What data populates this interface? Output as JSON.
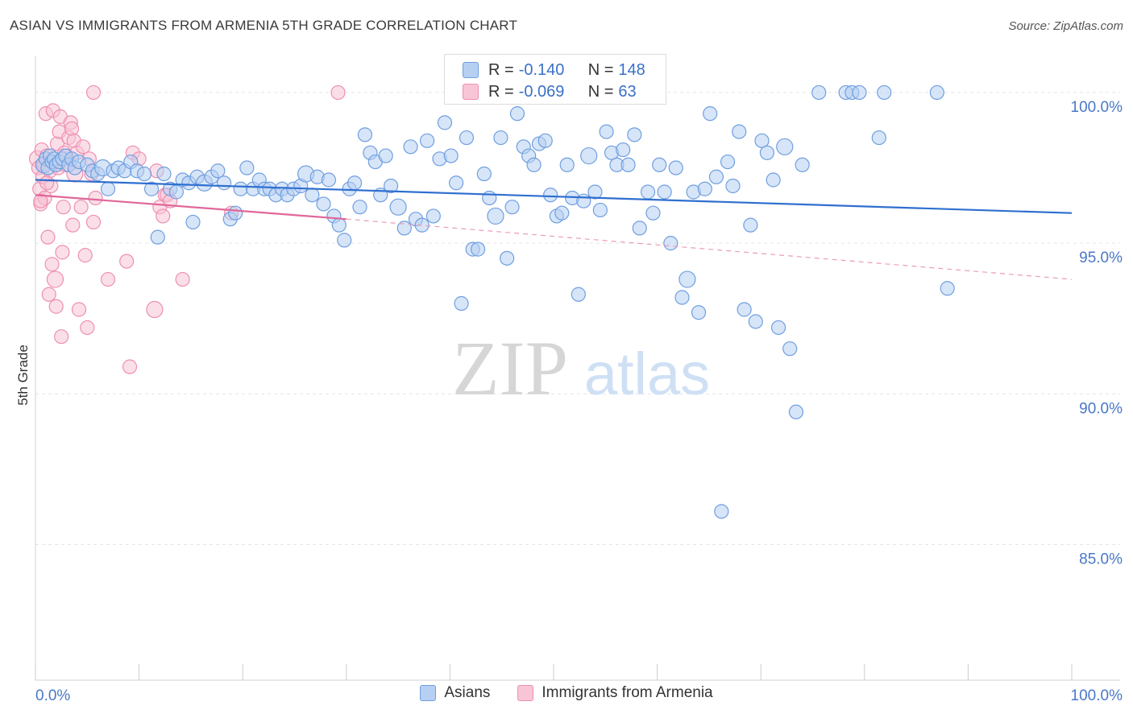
{
  "title": "ASIAN VS IMMIGRANTS FROM ARMENIA 5TH GRADE CORRELATION CHART",
  "source": "Source: ZipAtlas.com",
  "watermark": {
    "zip": "ZIP",
    "atlas": "atlas"
  },
  "stats": [
    {
      "r_label": "R =",
      "r": "-0.140",
      "n_label": "N =",
      "n": "148",
      "color": "#6f9fe0",
      "fill": "#b7cff2"
    },
    {
      "r_label": "R =",
      "r": "-0.069",
      "n_label": "N =",
      "n": "63",
      "color": "#ee8fb0",
      "fill": "#f8c5d6"
    }
  ],
  "chart_data": {
    "type": "scatter",
    "title": "ASIAN VS IMMIGRANTS FROM ARMENIA 5TH GRADE CORRELATION CHART",
    "xlabel": "",
    "ylabel": "5th Grade",
    "xlim": [
      0,
      100
    ],
    "ylim": [
      80.5,
      101.2
    ],
    "x_tick_labels": [
      {
        "value": 0,
        "label": "0.0%"
      },
      {
        "value": 100,
        "label": "100.0%"
      }
    ],
    "y_tick_labels": [
      {
        "value": 100,
        "label": "100.0%"
      },
      {
        "value": 95,
        "label": "95.0%"
      },
      {
        "value": 90,
        "label": "90.0%"
      },
      {
        "value": 85,
        "label": "85.0%"
      }
    ],
    "grid": true,
    "legend_position": "bottom",
    "series": [
      {
        "name": "Asians",
        "color": "#6f9fe0",
        "fill": "#b7cff2",
        "trend": {
          "x0": 0,
          "y0": 97.1,
          "x1": 100,
          "y1": 96.0
        },
        "points": [
          [
            0.8,
            97.6
          ],
          [
            1.0,
            97.8
          ],
          [
            1.2,
            97.5
          ],
          [
            1.4,
            97.9
          ],
          [
            1.6,
            97.7
          ],
          [
            1.8,
            97.8
          ],
          [
            2.0,
            97.6
          ],
          [
            2.3,
            97.7
          ],
          [
            2.6,
            97.8
          ],
          [
            2.9,
            97.9
          ],
          [
            3.2,
            97.6
          ],
          [
            3.5,
            97.8
          ],
          [
            3.8,
            97.5
          ],
          [
            4.2,
            97.7
          ],
          [
            5.0,
            97.6
          ],
          [
            5.5,
            97.4
          ],
          [
            6.0,
            97.3
          ],
          [
            6.5,
            97.5
          ],
          [
            7.0,
            96.8
          ],
          [
            7.5,
            97.4
          ],
          [
            8.0,
            97.5
          ],
          [
            8.6,
            97.4
          ],
          [
            9.2,
            97.7
          ],
          [
            9.8,
            97.4
          ],
          [
            10.5,
            97.3
          ],
          [
            11.2,
            96.8
          ],
          [
            11.8,
            95.2
          ],
          [
            12.4,
            97.3
          ],
          [
            13.0,
            96.8
          ],
          [
            13.6,
            96.7
          ],
          [
            14.2,
            97.1
          ],
          [
            14.8,
            97.0
          ],
          [
            15.2,
            95.7
          ],
          [
            15.6,
            97.2
          ],
          [
            16.3,
            97.0
          ],
          [
            17.0,
            97.2
          ],
          [
            17.6,
            97.4
          ],
          [
            18.2,
            97.0
          ],
          [
            18.8,
            95.8
          ],
          [
            19.3,
            96.0
          ],
          [
            19.8,
            96.8
          ],
          [
            20.4,
            97.5
          ],
          [
            21.0,
            96.8
          ],
          [
            21.6,
            97.1
          ],
          [
            22.1,
            96.8
          ],
          [
            22.6,
            96.8
          ],
          [
            23.2,
            96.6
          ],
          [
            23.8,
            96.8
          ],
          [
            24.3,
            96.6
          ],
          [
            24.9,
            96.8
          ],
          [
            25.6,
            96.9
          ],
          [
            26.1,
            97.3
          ],
          [
            26.7,
            96.6
          ],
          [
            27.2,
            97.2
          ],
          [
            27.8,
            96.3
          ],
          [
            28.3,
            97.1
          ],
          [
            28.8,
            95.9
          ],
          [
            29.3,
            95.6
          ],
          [
            29.8,
            95.1
          ],
          [
            30.3,
            96.8
          ],
          [
            30.8,
            97.0
          ],
          [
            31.3,
            96.2
          ],
          [
            31.8,
            98.6
          ],
          [
            32.3,
            98.0
          ],
          [
            32.8,
            97.7
          ],
          [
            33.3,
            96.6
          ],
          [
            33.8,
            97.9
          ],
          [
            34.3,
            96.9
          ],
          [
            35.0,
            96.2
          ],
          [
            35.6,
            95.5
          ],
          [
            36.2,
            98.2
          ],
          [
            36.7,
            95.8
          ],
          [
            37.3,
            95.6
          ],
          [
            37.8,
            98.4
          ],
          [
            38.4,
            95.9
          ],
          [
            39.0,
            97.8
          ],
          [
            39.5,
            99.0
          ],
          [
            40.1,
            97.9
          ],
          [
            40.6,
            97.0
          ],
          [
            41.1,
            93.0
          ],
          [
            41.6,
            98.5
          ],
          [
            42.2,
            94.8
          ],
          [
            42.7,
            94.8
          ],
          [
            43.3,
            97.3
          ],
          [
            43.8,
            96.5
          ],
          [
            44.4,
            95.9
          ],
          [
            44.9,
            98.5
          ],
          [
            45.5,
            94.5
          ],
          [
            46.0,
            96.2
          ],
          [
            46.5,
            99.3
          ],
          [
            47.1,
            98.2
          ],
          [
            47.6,
            97.9
          ],
          [
            48.1,
            97.6
          ],
          [
            48.6,
            98.3
          ],
          [
            49.2,
            98.4
          ],
          [
            49.7,
            96.6
          ],
          [
            50.3,
            95.9
          ],
          [
            50.8,
            96.0
          ],
          [
            51.3,
            97.6
          ],
          [
            51.8,
            96.5
          ],
          [
            52.4,
            93.3
          ],
          [
            52.9,
            96.4
          ],
          [
            53.4,
            97.9
          ],
          [
            54.0,
            96.7
          ],
          [
            54.5,
            96.1
          ],
          [
            55.1,
            98.7
          ],
          [
            55.6,
            98.0
          ],
          [
            56.1,
            97.6
          ],
          [
            56.7,
            98.1
          ],
          [
            57.2,
            97.6
          ],
          [
            57.8,
            98.6
          ],
          [
            58.3,
            95.5
          ],
          [
            59.1,
            96.7
          ],
          [
            59.6,
            96.0
          ],
          [
            60.2,
            97.6
          ],
          [
            60.7,
            96.7
          ],
          [
            61.3,
            95.0
          ],
          [
            61.8,
            97.5
          ],
          [
            62.4,
            93.2
          ],
          [
            62.9,
            93.8
          ],
          [
            63.5,
            96.7
          ],
          [
            64.0,
            92.7
          ],
          [
            64.6,
            96.8
          ],
          [
            65.1,
            99.3
          ],
          [
            65.7,
            97.2
          ],
          [
            66.2,
            86.1
          ],
          [
            66.8,
            97.7
          ],
          [
            67.3,
            96.9
          ],
          [
            67.9,
            98.7
          ],
          [
            68.4,
            92.8
          ],
          [
            69.0,
            95.6
          ],
          [
            69.5,
            92.4
          ],
          [
            70.1,
            98.4
          ],
          [
            70.6,
            98.0
          ],
          [
            71.2,
            97.1
          ],
          [
            71.7,
            92.2
          ],
          [
            72.3,
            98.2
          ],
          [
            72.8,
            91.5
          ],
          [
            73.4,
            89.4
          ],
          [
            74.0,
            97.6
          ],
          [
            75.6,
            100.0
          ],
          [
            78.2,
            100.0
          ],
          [
            78.8,
            100.0
          ],
          [
            79.5,
            100.0
          ],
          [
            81.4,
            98.5
          ],
          [
            81.9,
            100.0
          ],
          [
            87.0,
            100.0
          ],
          [
            88.0,
            93.5
          ]
        ]
      },
      {
        "name": "Immigrants from Armenia",
        "color": "#ee8fb0",
        "fill": "#f8c5d6",
        "trend_solid": {
          "x0": 0,
          "y0": 96.6,
          "x1": 30,
          "y1": 95.8
        },
        "trend_dashed": {
          "x0": 30,
          "y0": 95.8,
          "x1": 100,
          "y1": 93.8
        },
        "points": [
          [
            0.2,
            97.8
          ],
          [
            0.3,
            97.5
          ],
          [
            0.4,
            96.8
          ],
          [
            0.5,
            96.3
          ],
          [
            0.6,
            98.1
          ],
          [
            0.7,
            97.2
          ],
          [
            0.8,
            97.6
          ],
          [
            0.9,
            96.5
          ],
          [
            1.0,
            99.3
          ],
          [
            1.1,
            97.9
          ],
          [
            1.2,
            95.2
          ],
          [
            1.3,
            93.3
          ],
          [
            1.4,
            97.4
          ],
          [
            1.5,
            96.9
          ],
          [
            1.6,
            94.3
          ],
          [
            1.7,
            99.4
          ],
          [
            1.8,
            97.7
          ],
          [
            1.9,
            93.8
          ],
          [
            2.0,
            92.9
          ],
          [
            2.1,
            98.3
          ],
          [
            2.2,
            97.5
          ],
          [
            2.3,
            98.7
          ],
          [
            2.4,
            99.2
          ],
          [
            2.5,
            91.9
          ],
          [
            2.6,
            94.7
          ],
          [
            2.7,
            96.2
          ],
          [
            2.8,
            98.0
          ],
          [
            2.9,
            97.6
          ],
          [
            3.0,
            97.9
          ],
          [
            3.2,
            98.5
          ],
          [
            3.4,
            99.0
          ],
          [
            3.5,
            98.8
          ],
          [
            3.6,
            95.6
          ],
          [
            3.7,
            98.4
          ],
          [
            3.8,
            97.3
          ],
          [
            4.0,
            98.0
          ],
          [
            4.2,
            92.8
          ],
          [
            4.4,
            96.2
          ],
          [
            4.6,
            98.2
          ],
          [
            4.8,
            94.6
          ],
          [
            5.0,
            92.2
          ],
          [
            5.2,
            97.8
          ],
          [
            5.4,
            97.3
          ],
          [
            5.6,
            95.7
          ],
          [
            5.8,
            96.5
          ],
          [
            5.6,
            100.0
          ],
          [
            7.0,
            93.8
          ],
          [
            8.8,
            94.4
          ],
          [
            9.1,
            90.9
          ],
          [
            9.4,
            98.0
          ],
          [
            10.0,
            97.8
          ],
          [
            11.5,
            92.8
          ],
          [
            11.7,
            97.4
          ],
          [
            12.0,
            96.2
          ],
          [
            12.3,
            95.9
          ],
          [
            12.5,
            96.6
          ],
          [
            12.7,
            96.6
          ],
          [
            13.0,
            96.4
          ],
          [
            14.2,
            93.8
          ],
          [
            18.9,
            96.0
          ],
          [
            29.2,
            100.0
          ],
          [
            0.5,
            96.4
          ],
          [
            1.1,
            97.0
          ]
        ]
      }
    ]
  }
}
